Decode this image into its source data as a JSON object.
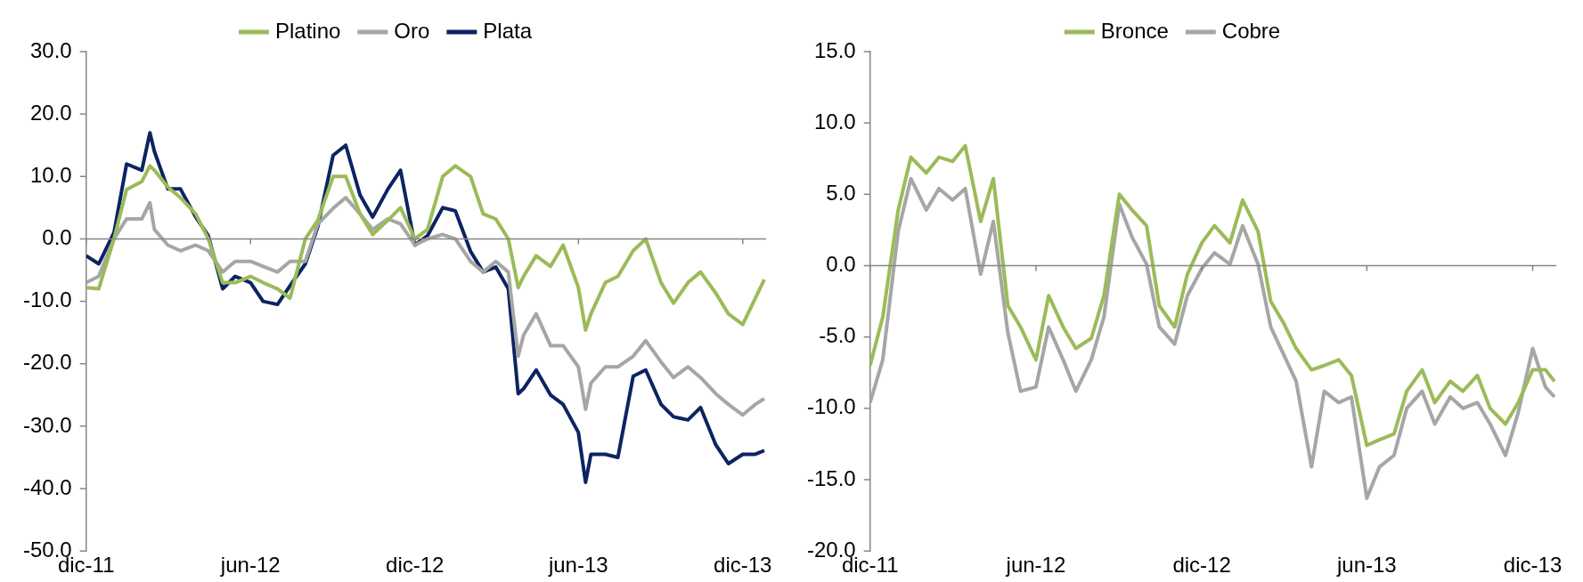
{
  "chart_data": [
    {
      "type": "line",
      "legend": "top",
      "marker": "none",
      "line_style": "solid",
      "x": [
        "2011-12-01",
        "2011-12-15",
        "2012-01-01",
        "2012-01-15",
        "2012-02-01",
        "2012-02-10",
        "2012-02-15",
        "2012-03-01",
        "2012-03-15",
        "2012-04-01",
        "2012-04-15",
        "2012-05-01",
        "2012-05-15",
        "2012-06-01",
        "2012-06-15",
        "2012-07-01",
        "2012-07-15",
        "2012-08-01",
        "2012-08-15",
        "2012-09-01",
        "2012-09-15",
        "2012-10-01",
        "2012-10-15",
        "2012-11-01",
        "2012-11-15",
        "2012-12-01",
        "2012-12-15",
        "2013-01-01",
        "2013-01-15",
        "2013-02-01",
        "2013-02-15",
        "2013-03-01",
        "2013-03-15",
        "2013-03-26",
        "2013-04-01",
        "2013-04-15",
        "2013-05-01",
        "2013-05-15",
        "2013-06-01",
        "2013-06-09",
        "2013-06-15",
        "2013-07-01",
        "2013-07-15",
        "2013-08-01",
        "2013-08-15",
        "2013-09-01",
        "2013-09-15",
        "2013-10-01",
        "2013-10-15",
        "2013-11-01",
        "2013-11-15",
        "2013-12-01",
        "2013-12-15",
        "2013-12-25"
      ],
      "xlim": [
        "2011-12-01",
        "2013-12-27"
      ],
      "xticks": [
        {
          "value": "2011-12-01",
          "label": "dic-11"
        },
        {
          "value": "2012-06-01",
          "label": "jun-12"
        },
        {
          "value": "2012-12-01",
          "label": "dic-12"
        },
        {
          "value": "2013-06-01",
          "label": "jun-13"
        },
        {
          "value": "2013-12-01",
          "label": "dic-13"
        }
      ],
      "ylim": [
        -50,
        30
      ],
      "yticks": [
        {
          "value": -50,
          "label": "-50.0"
        },
        {
          "value": -40,
          "label": "-40.0"
        },
        {
          "value": -30,
          "label": "-30.0"
        },
        {
          "value": -20,
          "label": "-20.0"
        },
        {
          "value": -10,
          "label": "-10.0"
        },
        {
          "value": 0,
          "label": "0.0"
        },
        {
          "value": 10,
          "label": "10.0"
        },
        {
          "value": 20,
          "label": "20.0"
        },
        {
          "value": 30,
          "label": "30.0"
        }
      ],
      "series": [
        {
          "name": "Platino",
          "color": "#9bbb59",
          "values": [
            -7.8,
            -8,
            0,
            7.9,
            9.2,
            11.7,
            11,
            8.3,
            6.6,
            4,
            0,
            -7,
            -7,
            -6,
            -7,
            -8,
            -9.5,
            0,
            3,
            10,
            10,
            4,
            0.7,
            3,
            5,
            0,
            1.5,
            10,
            11.7,
            10,
            4,
            3.2,
            0,
            -7.8,
            -6,
            -2.7,
            -4.4,
            -1,
            -7.8,
            -14.6,
            -12,
            -7,
            -6,
            -1.9,
            0,
            -7,
            -10.3,
            -7,
            -5.3,
            -8.7,
            -12,
            -13.7,
            -9.5,
            -6.5
          ]
        },
        {
          "name": "Oro",
          "color": "#a6a6a6",
          "values": [
            -7,
            -6,
            0,
            3.2,
            3.2,
            5.8,
            1.5,
            -1,
            -1.9,
            -1,
            -1.9,
            -5.3,
            -3.6,
            -3.6,
            -4.4,
            -5.3,
            -3.6,
            -3.6,
            2.4,
            4.9,
            6.6,
            4,
            1.5,
            3.2,
            2.4,
            -1,
            0,
            0.7,
            0,
            -3.6,
            -5.3,
            -3.6,
            -5.3,
            -18.8,
            -15.4,
            -12,
            -17.1,
            -17.1,
            -20.5,
            -27.3,
            -23.1,
            -20.5,
            -20.5,
            -18.8,
            -16.3,
            -19.7,
            -22.2,
            -20.5,
            -22.2,
            -24.8,
            -26.5,
            -28.2,
            -26.5,
            -25.6
          ]
        },
        {
          "name": "Plata",
          "color": "#0c2461",
          "values": [
            -2.7,
            -4,
            1,
            12,
            11,
            17,
            14,
            8,
            8,
            3.5,
            0.5,
            -8,
            -6,
            -7,
            -10,
            -10.5,
            -7.5,
            -4,
            2,
            13.4,
            15,
            7,
            3.5,
            8,
            11,
            -1,
            0.5,
            5,
            4.5,
            -2,
            -5.3,
            -4.5,
            -8,
            -24.8,
            -24,
            -21,
            -25,
            -26.5,
            -31,
            -39,
            -34.5,
            -34.5,
            -35,
            -22,
            -21,
            -26.5,
            -28.5,
            -29,
            -27,
            -33,
            -36,
            -34.5,
            -34.5,
            -33.9
          ]
        }
      ]
    },
    {
      "type": "line",
      "legend": "top",
      "marker": "none",
      "line_style": "solid",
      "x": [
        "2011-12-01",
        "2011-12-15",
        "2012-01-01",
        "2012-01-15",
        "2012-02-01",
        "2012-02-15",
        "2012-03-01",
        "2012-03-15",
        "2012-04-01",
        "2012-04-15",
        "2012-05-01",
        "2012-05-15",
        "2012-06-01",
        "2012-06-15",
        "2012-07-01",
        "2012-07-15",
        "2012-08-01",
        "2012-08-15",
        "2012-09-01",
        "2012-09-15",
        "2012-10-01",
        "2012-10-15",
        "2012-11-01",
        "2012-11-15",
        "2012-12-01",
        "2012-12-15",
        "2013-01-01",
        "2013-01-15",
        "2013-02-01",
        "2013-02-15",
        "2013-03-01",
        "2013-03-15",
        "2013-04-01",
        "2013-04-15",
        "2013-05-01",
        "2013-05-15",
        "2013-06-01",
        "2013-06-15",
        "2013-07-01",
        "2013-07-15",
        "2013-08-01",
        "2013-08-15",
        "2013-09-01",
        "2013-09-15",
        "2013-10-01",
        "2013-10-15",
        "2013-11-01",
        "2013-11-15",
        "2013-12-01",
        "2013-12-15",
        "2013-12-25"
      ],
      "xlim": [
        "2011-12-01",
        "2013-12-27"
      ],
      "xticks": [
        {
          "value": "2011-12-01",
          "label": "dic-11"
        },
        {
          "value": "2012-06-01",
          "label": "jun-12"
        },
        {
          "value": "2012-12-01",
          "label": "dic-12"
        },
        {
          "value": "2013-06-01",
          "label": "jun-13"
        },
        {
          "value": "2013-12-01",
          "label": "dic-13"
        }
      ],
      "ylim": [
        -20,
        15
      ],
      "yticks": [
        {
          "value": -20,
          "label": "-20.0"
        },
        {
          "value": -15,
          "label": "-15.0"
        },
        {
          "value": -10,
          "label": "-10.0"
        },
        {
          "value": -5,
          "label": "-5.0"
        },
        {
          "value": 0,
          "label": "0.0"
        },
        {
          "value": 5,
          "label": "5.0"
        },
        {
          "value": 10,
          "label": "10.0"
        },
        {
          "value": 15,
          "label": "15.0"
        }
      ],
      "series": [
        {
          "name": "Bronce",
          "color": "#9bbb59",
          "values": [
            -7,
            -3.6,
            3.9,
            7.6,
            6.5,
            7.6,
            7.3,
            8.4,
            3.1,
            6.1,
            -2.8,
            -4.3,
            -6.6,
            -2.1,
            -4.3,
            -5.8,
            -5.1,
            -2.1,
            5,
            3.9,
            2.8,
            -2.8,
            -4.3,
            -0.6,
            1.6,
            2.8,
            1.6,
            4.6,
            2.4,
            -2.5,
            -4,
            -5.8,
            -7.3,
            -7,
            -6.6,
            -7.7,
            -12.6,
            -12.2,
            -11.8,
            -8.8,
            -7.3,
            -9.6,
            -8.1,
            -8.8,
            -7.7,
            -10,
            -11.1,
            -9.6,
            -7.3,
            -7.3,
            -8.1
          ]
        },
        {
          "name": "Cobre",
          "color": "#a6a6a6",
          "values": [
            -9.6,
            -6.6,
            2.4,
            6.1,
            3.9,
            5.4,
            4.6,
            5.4,
            -0.6,
            3.1,
            -4.7,
            -8.8,
            -8.5,
            -4.3,
            -6.6,
            -8.8,
            -6.6,
            -3.6,
            4.3,
            2,
            0.1,
            -4.3,
            -5.5,
            -2.1,
            -0.2,
            0.9,
            0.1,
            2.8,
            0.1,
            -4.3,
            -6.2,
            -8.1,
            -14.1,
            -8.8,
            -9.6,
            -9.2,
            -16.3,
            -14.1,
            -13.3,
            -10,
            -8.8,
            -11.1,
            -9.2,
            -10,
            -9.6,
            -11.1,
            -13.3,
            -10.3,
            -5.8,
            -8.5,
            -9.2
          ]
        }
      ]
    }
  ]
}
